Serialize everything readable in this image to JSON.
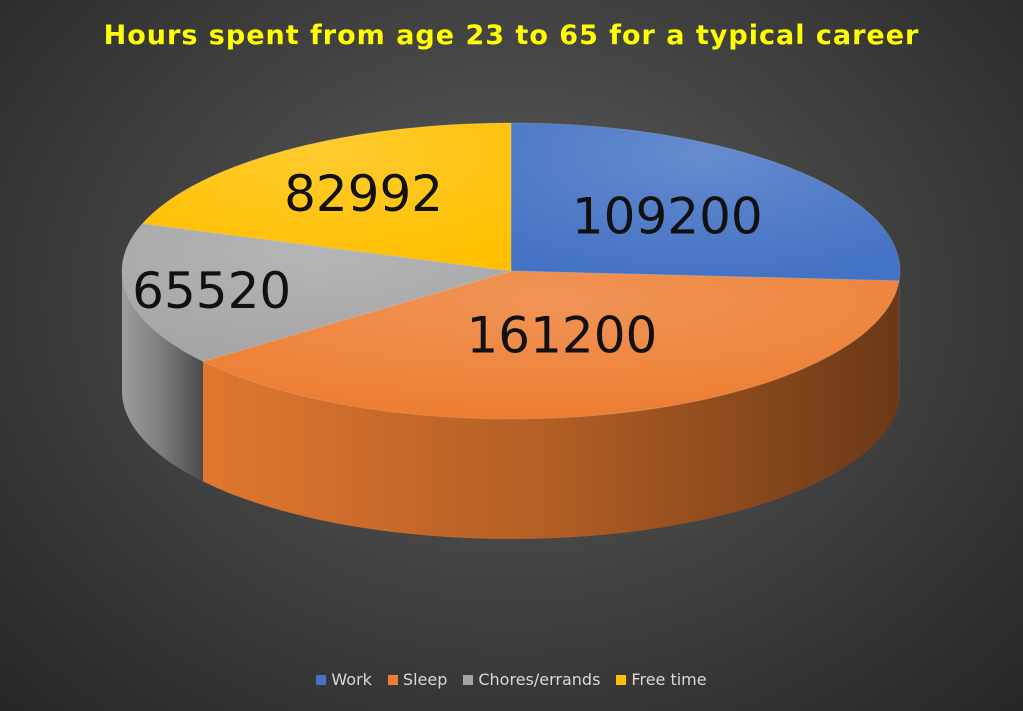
{
  "chart_data": {
    "type": "pie",
    "title": "Hours spent from age 23 to 65 for a typical career",
    "categories": [
      "Work",
      "Sleep",
      "Chores/errands",
      "Free time"
    ],
    "values": [
      109200,
      161200,
      65520,
      82992
    ],
    "colors": [
      "#4472c4",
      "#ed7d31",
      "#a5a5a5",
      "#ffc000"
    ],
    "legend_position": "bottom",
    "style": "3d"
  }
}
